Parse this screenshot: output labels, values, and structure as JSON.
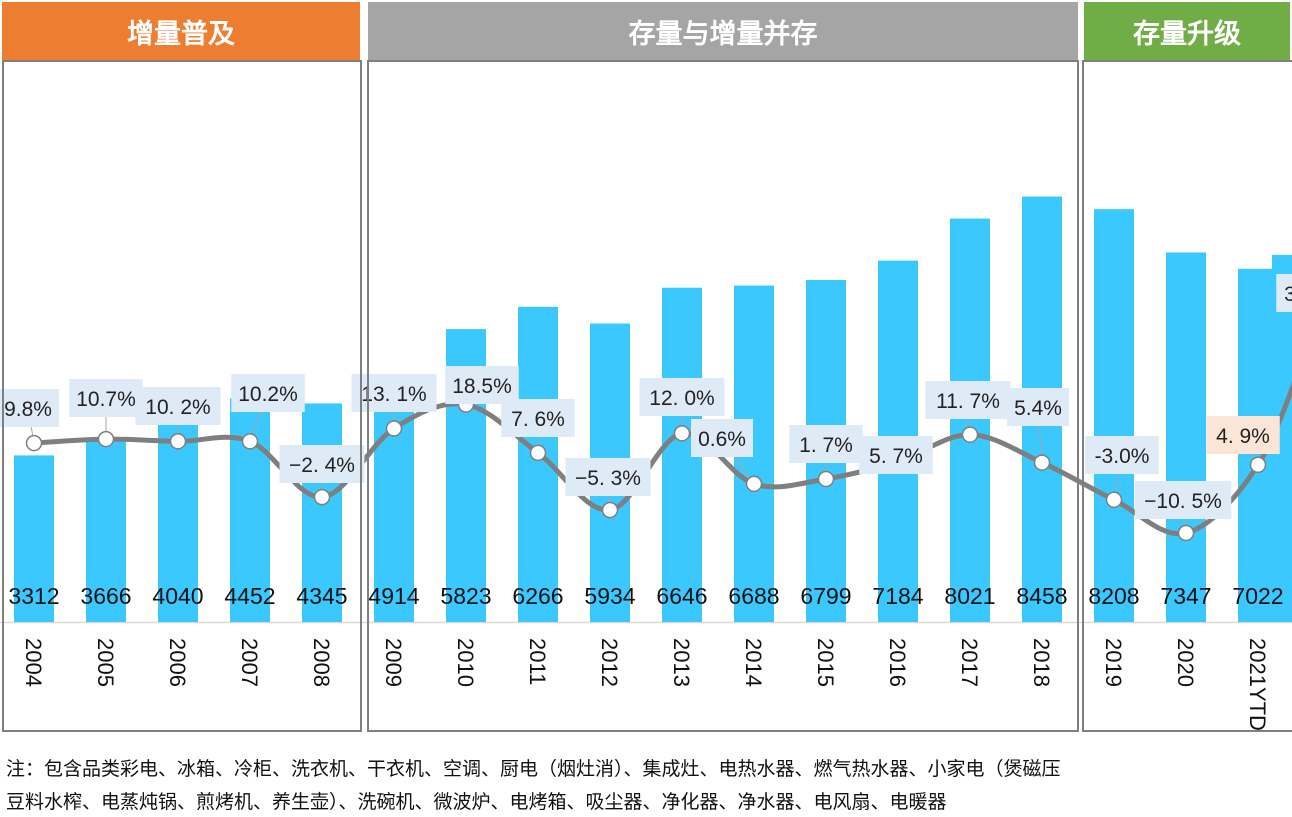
{
  "phases": [
    {
      "label": "增量普及",
      "color": "#ed7d31"
    },
    {
      "label": "存量与增量并存",
      "color": "#a5a5a5"
    },
    {
      "label": "存量升级",
      "color": "#70ad47"
    }
  ],
  "chart_data": {
    "type": "bar+line",
    "categories": [
      "2004",
      "2005",
      "2006",
      "2007",
      "2008",
      "2009",
      "2010",
      "2011",
      "2012",
      "2013",
      "2014",
      "2015",
      "2016",
      "2017",
      "2018",
      "2019",
      "2020",
      "2021YTD"
    ],
    "series": [
      {
        "type": "bar",
        "color": "#3ac8ff",
        "values": [
          3312,
          3666,
          4040,
          4452,
          4345,
          4914,
          5823,
          6266,
          5934,
          6646,
          6688,
          6799,
          7184,
          8021,
          8458,
          8208,
          7347,
          7022
        ],
        "labels": [
          "3312",
          "3666",
          "4040",
          "4452",
          "4345",
          "4914",
          "5823",
          "6266",
          "5934",
          "6646",
          "6688",
          "6799",
          "7184",
          "8021",
          "8458",
          "8208",
          "7347",
          "7022"
        ]
      },
      {
        "type": "line",
        "color": "#7f7f7f",
        "unit": "%",
        "values": [
          9.8,
          10.7,
          10.2,
          10.2,
          -2.4,
          13.1,
          18.5,
          7.6,
          -5.3,
          12.0,
          0.6,
          1.7,
          5.7,
          11.7,
          5.4,
          -3.0,
          -10.5,
          4.9
        ],
        "labels": [
          "9.8%",
          "10.7%",
          "10. 2%",
          "10.2%",
          "−2. 4%",
          "13. 1%",
          "18.5%",
          "7. 6%",
          "−5. 3%",
          "12. 0%",
          "0.6%",
          "1. 7%",
          "5. 7%",
          "11. 7%",
          "5.4%",
          "-3.0%",
          "−10. 5%",
          "4. 9%"
        ]
      }
    ],
    "truncated_label": "3",
    "grid": false,
    "legend": "none"
  },
  "note": {
    "line1": "注：包含品类彩电、冰箱、冷柜、洗衣机、干衣机、空调、厨电（烟灶消）、集成灶、电热水器、燃气热水器、小家电（煲磁压",
    "line2": "豆料水榨、电蒸炖锅、煎烤机、养生壶）、洗碗机、微波炉、电烤箱、吸尘器、净化器、净水器、电风扇、电暖器"
  }
}
